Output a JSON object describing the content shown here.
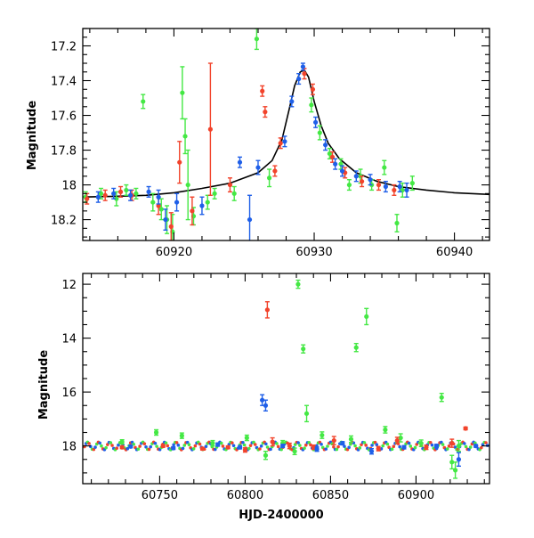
{
  "colors": {
    "green": "#44e844",
    "red": "#f2432b",
    "blue": "#1f5fe8",
    "model": "#000000"
  },
  "chart_data": [
    {
      "type": "scatter",
      "xlabel": "",
      "ylabel": "Magnitude",
      "xlim": [
        60913.5,
        60942.5
      ],
      "ylim": [
        18.32,
        17.1
      ],
      "y_inverted": true,
      "xticks": [
        60920,
        60930,
        60940
      ],
      "yticks": [
        17.2,
        17.4,
        17.6,
        17.8,
        18,
        18.2
      ],
      "model_curve": {
        "x": [
          60913.5,
          60916,
          60918,
          60920,
          60922,
          60924,
          60926,
          60927,
          60927.7,
          60928.2,
          60928.6,
          60929.0,
          60929.3,
          60929.6,
          60930.0,
          60930.5,
          60931.0,
          60931.8,
          60933,
          60934.5,
          60936,
          60938,
          60940,
          60942.5
        ],
        "y": [
          18.07,
          18.065,
          18.06,
          18.045,
          18.02,
          17.99,
          17.93,
          17.86,
          17.74,
          17.57,
          17.43,
          17.35,
          17.34,
          17.38,
          17.52,
          17.66,
          17.76,
          17.85,
          17.93,
          17.98,
          18.01,
          18.03,
          18.045,
          18.055
        ]
      },
      "series": [
        {
          "color": "green",
          "points": [
            [
              60913.7,
              18.07,
              0.03
            ],
            [
              60914.8,
              18.05,
              0.03
            ],
            [
              60915.9,
              18.08,
              0.04
            ],
            [
              60916.6,
              18.03,
              0.03
            ],
            [
              60917.3,
              18.05,
              0.03
            ],
            [
              60917.8,
              17.52,
              0.04
            ],
            [
              60918.5,
              18.1,
              0.05
            ],
            [
              60919.1,
              18.14,
              0.06
            ],
            [
              60919.5,
              18.2,
              0.08
            ],
            [
              60919.9,
              18.27,
              0.1
            ],
            [
              60920.6,
              17.47,
              0.15
            ],
            [
              60920.8,
              17.72,
              0.1
            ],
            [
              60921.0,
              18.0,
              0.2
            ],
            [
              60921.4,
              18.18,
              0.05
            ],
            [
              60922.4,
              18.1,
              0.04
            ],
            [
              60922.9,
              18.05,
              0.03
            ],
            [
              60924.3,
              18.05,
              0.04
            ],
            [
              60925.9,
              17.16,
              0.06
            ],
            [
              60926.8,
              17.96,
              0.05
            ],
            [
              60929.8,
              17.54,
              0.04
            ],
            [
              60930.4,
              17.7,
              0.04
            ],
            [
              60931.1,
              17.82,
              0.03
            ],
            [
              60931.9,
              17.88,
              0.03
            ],
            [
              60932.5,
              18.0,
              0.03
            ],
            [
              60933.3,
              17.95,
              0.04
            ],
            [
              60934.1,
              18.0,
              0.03
            ],
            [
              60935.0,
              17.9,
              0.04
            ],
            [
              60935.9,
              18.22,
              0.05
            ],
            [
              60936.3,
              18.03,
              0.04
            ],
            [
              60937.0,
              17.99,
              0.04
            ]
          ]
        },
        {
          "color": "red",
          "points": [
            [
              60913.8,
              18.08,
              0.03
            ],
            [
              60915.1,
              18.06,
              0.03
            ],
            [
              60916.2,
              18.04,
              0.03
            ],
            [
              60917.0,
              18.06,
              0.03
            ],
            [
              60918.9,
              18.12,
              0.05
            ],
            [
              60919.8,
              18.24,
              0.08
            ],
            [
              60920.4,
              17.87,
              0.12
            ],
            [
              60921.3,
              18.15,
              0.08
            ],
            [
              60922.6,
              17.68,
              0.38
            ],
            [
              60924.0,
              18.0,
              0.04
            ],
            [
              60926.3,
              17.46,
              0.03
            ],
            [
              60926.5,
              17.58,
              0.03
            ],
            [
              60927.2,
              17.92,
              0.03
            ],
            [
              60927.6,
              17.76,
              0.03
            ],
            [
              60929.3,
              17.36,
              0.03
            ],
            [
              60929.9,
              17.45,
              0.03
            ],
            [
              60931.3,
              17.84,
              0.03
            ],
            [
              60932.2,
              17.93,
              0.03
            ],
            [
              60933.4,
              17.98,
              0.03
            ],
            [
              60934.6,
              18.0,
              0.03
            ],
            [
              60935.7,
              18.03,
              0.03
            ]
          ]
        },
        {
          "color": "blue",
          "points": [
            [
              60914.6,
              18.07,
              0.03
            ],
            [
              60915.7,
              18.05,
              0.03
            ],
            [
              60916.9,
              18.06,
              0.03
            ],
            [
              60918.2,
              18.04,
              0.03
            ],
            [
              60918.9,
              18.07,
              0.04
            ],
            [
              60919.4,
              18.2,
              0.06
            ],
            [
              60920.2,
              18.1,
              0.05
            ],
            [
              60922.0,
              18.12,
              0.05
            ],
            [
              60924.7,
              17.87,
              0.03
            ],
            [
              60925.4,
              18.2,
              0.14
            ],
            [
              60926.0,
              17.9,
              0.04
            ],
            [
              60927.9,
              17.75,
              0.03
            ],
            [
              60928.4,
              17.52,
              0.03
            ],
            [
              60928.9,
              17.39,
              0.03
            ],
            [
              60929.2,
              17.32,
              0.02
            ],
            [
              60930.1,
              17.64,
              0.03
            ],
            [
              60930.8,
              17.77,
              0.03
            ],
            [
              60931.5,
              17.88,
              0.03
            ],
            [
              60932.0,
              17.92,
              0.03
            ],
            [
              60933.0,
              17.95,
              0.03
            ],
            [
              60934.0,
              17.97,
              0.03
            ],
            [
              60935.1,
              18.01,
              0.03
            ],
            [
              60936.1,
              18.01,
              0.03
            ],
            [
              60936.6,
              18.03,
              0.04
            ]
          ]
        }
      ]
    },
    {
      "type": "scatter",
      "xlabel": "HJD-2400000",
      "ylabel": "Magnitude",
      "xlim": [
        60705,
        60943
      ],
      "ylim": [
        19.4,
        11.6
      ],
      "y_inverted": true,
      "xticks": [
        60750,
        60800,
        60850,
        60900
      ],
      "yticks": [
        12,
        14,
        16,
        18
      ],
      "baseline": 18.0,
      "series": [
        {
          "color": "green",
          "points": [
            [
              60728,
              17.85,
              0.08
            ],
            [
              60748,
              17.5,
              0.1
            ],
            [
              60763,
              17.62,
              0.1
            ],
            [
              60781,
              17.9,
              0.1
            ],
            [
              60801,
              17.7,
              0.1
            ],
            [
              60812,
              18.35,
              0.15
            ],
            [
              60822,
              17.9,
              0.1
            ],
            [
              60829,
              18.2,
              0.12
            ],
            [
              60831,
              12.0,
              0.15
            ],
            [
              60834,
              14.4,
              0.15
            ],
            [
              60836,
              16.8,
              0.3
            ],
            [
              60845,
              17.6,
              0.12
            ],
            [
              60862,
              17.75,
              0.12
            ],
            [
              60865,
              14.35,
              0.15
            ],
            [
              60871,
              13.2,
              0.3
            ],
            [
              60882,
              17.4,
              0.12
            ],
            [
              60891,
              17.7,
              0.15
            ],
            [
              60903,
              17.9,
              0.12
            ],
            [
              60915,
              16.2,
              0.15
            ],
            [
              60921,
              18.6,
              0.25
            ],
            [
              60923,
              18.9,
              0.3
            ],
            [
              60925,
              18.0,
              0.2
            ]
          ]
        },
        {
          "color": "red",
          "points": [
            [
              60728,
              18.05,
              0.05
            ],
            [
              60752,
              18.0,
              0.05
            ],
            [
              60775,
              18.1,
              0.05
            ],
            [
              60790,
              18.05,
              0.05
            ],
            [
              60800,
              18.15,
              0.08
            ],
            [
              60813,
              12.95,
              0.3
            ],
            [
              60816,
              17.85,
              0.15
            ],
            [
              60826,
              18.0,
              0.1
            ],
            [
              60840,
              18.05,
              0.08
            ],
            [
              60852,
              17.8,
              0.15
            ],
            [
              60878,
              18.1,
              0.08
            ],
            [
              60889,
              17.8,
              0.12
            ],
            [
              60906,
              18.05,
              0.08
            ],
            [
              60921,
              17.9,
              0.15
            ],
            [
              60929,
              17.35,
              0.05
            ]
          ]
        },
        {
          "color": "blue",
          "points": [
            [
              60733,
              18.02,
              0.05
            ],
            [
              60758,
              18.08,
              0.05
            ],
            [
              60784,
              17.95,
              0.06
            ],
            [
              60797,
              18.05,
              0.06
            ],
            [
              60810,
              16.3,
              0.2
            ],
            [
              60812,
              16.5,
              0.2
            ],
            [
              60822,
              18.0,
              0.06
            ],
            [
              60842,
              18.12,
              0.08
            ],
            [
              60857,
              17.9,
              0.06
            ],
            [
              60874,
              18.2,
              0.1
            ],
            [
              60893,
              18.05,
              0.06
            ],
            [
              60912,
              18.0,
              0.06
            ],
            [
              60925,
              18.5,
              0.25
            ],
            [
              60935,
              18.0,
              0.05
            ]
          ]
        }
      ]
    }
  ]
}
